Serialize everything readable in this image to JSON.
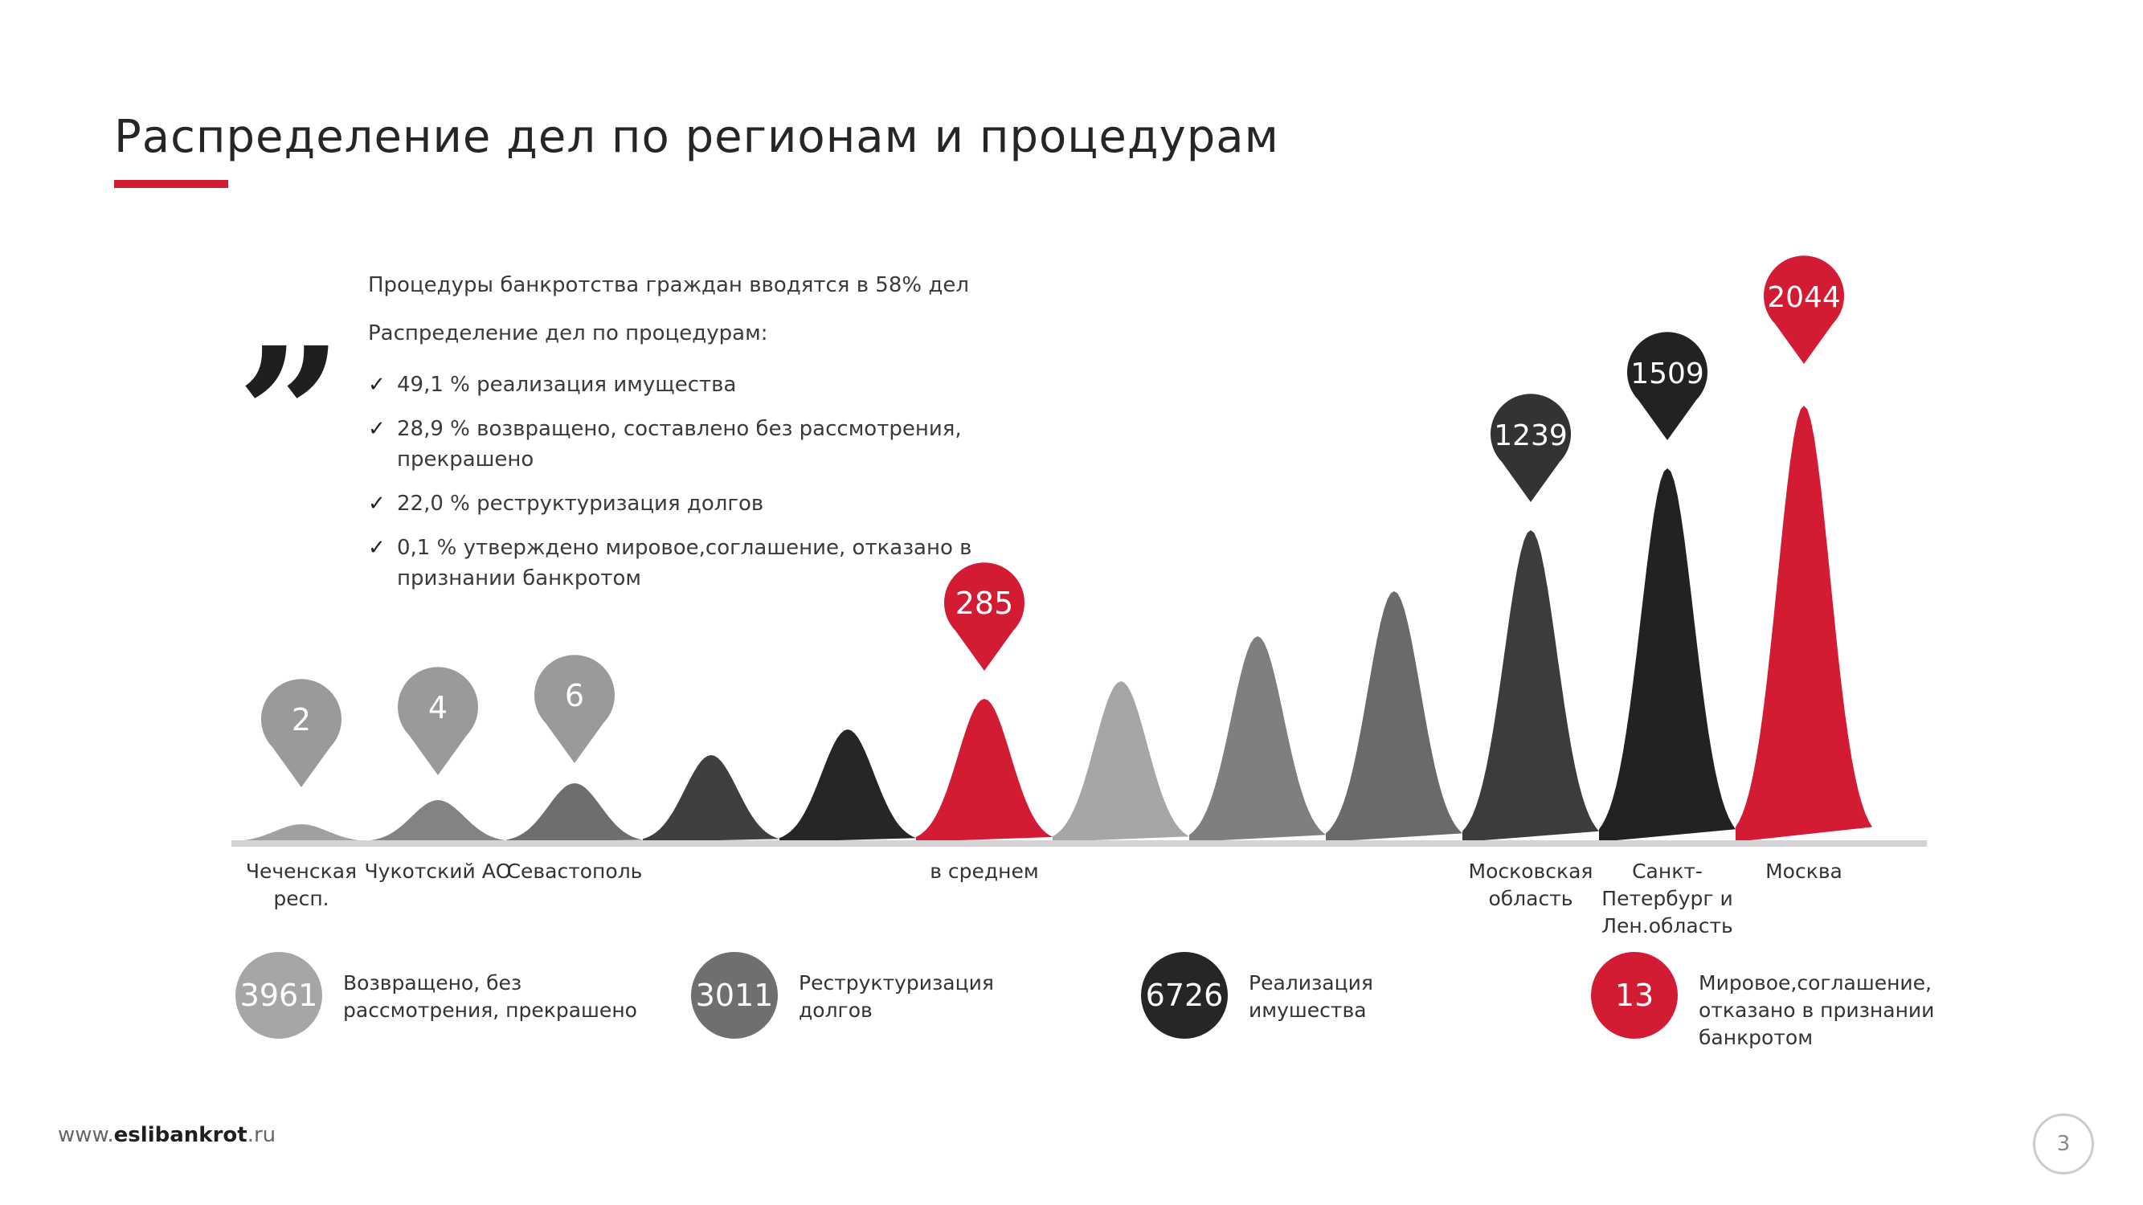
{
  "title": "Распределение дел по регионам и процедурам",
  "quote": {
    "line1": "Процедуры банкротства граждан вводятся в 58% дел",
    "line2": "Распределение дел по процедурам:",
    "bullets": [
      "49,1 % реализация имущества",
      "28,9 % возвращено, составлено без рассмотрения, прекрашено",
      "22,0 % реструктуризация долгов",
      "0,1 % утверждено мировое,соглашение, отказано в признании банкротом"
    ]
  },
  "chart_data": {
    "type": "area",
    "peaks": [
      {
        "label": "Чеченская\nресп.",
        "value": 2,
        "color": "#a0a0a0",
        "pin_color": "#9a9a9a",
        "value_label": "2"
      },
      {
        "label": "Чукотский АО",
        "value": 4,
        "color": "#838383",
        "pin_color": "#9a9a9a",
        "value_label": "4"
      },
      {
        "label": "Севастополь",
        "value": 6,
        "color": "#6e6e6e",
        "pin_color": "#9a9a9a",
        "value_label": "6"
      },
      {
        "label": "",
        "value": null,
        "color": "#3f3f3f",
        "pin_color": null,
        "value_label": ""
      },
      {
        "label": "",
        "value": null,
        "color": "#262626",
        "pin_color": null,
        "value_label": ""
      },
      {
        "label": "в среднем",
        "value": 285,
        "color": "#d41b34",
        "pin_color": "#d41b34",
        "value_label": "285"
      },
      {
        "label": "",
        "value": null,
        "color": "#a6a6a6",
        "pin_color": null,
        "value_label": ""
      },
      {
        "label": "",
        "value": null,
        "color": "#7f7f7f",
        "pin_color": null,
        "value_label": ""
      },
      {
        "label": "",
        "value": null,
        "color": "#6a6a6a",
        "pin_color": null,
        "value_label": ""
      },
      {
        "label": "Московская\nобласть",
        "value": 1239,
        "color": "#3c3c3c",
        "pin_color": "#333333",
        "value_label": "1239"
      },
      {
        "label": "Санкт-\nПетербург и\nЛен.область",
        "value": 1509,
        "color": "#222222",
        "pin_color": "#222222",
        "value_label": "1509"
      },
      {
        "label": "Москва",
        "value": 2044,
        "color": "#d41b34",
        "pin_color": "#d41b34",
        "value_label": "2044"
      }
    ]
  },
  "legend": [
    {
      "value": "3961",
      "color": "#a6a6a6",
      "text": "Возвращено, без\nрассмотрения, прекрашено"
    },
    {
      "value": "3011",
      "color": "#6f6f6f",
      "text": "Реструктуризация\nдолгов"
    },
    {
      "value": "6726",
      "color": "#262626",
      "text": "Реализация\nимушества"
    },
    {
      "value": "13",
      "color": "#d41b34",
      "text": "Мировое,соглашение,\nотказано в признании\nбанкротом"
    }
  ],
  "footer": {
    "url_prefix": "www.",
    "url_bold": "eslibankrot",
    "url_suffix": ".ru",
    "page": "3"
  }
}
